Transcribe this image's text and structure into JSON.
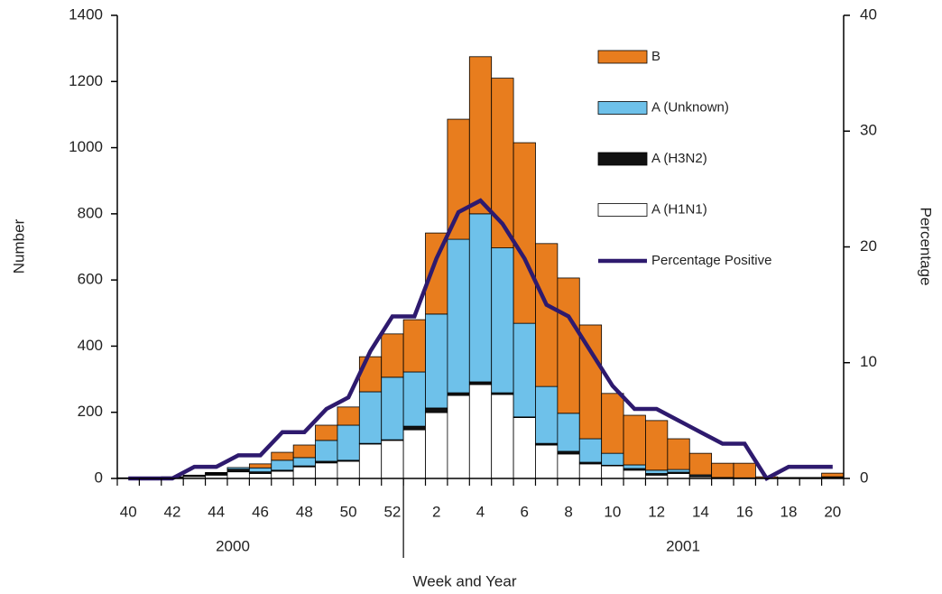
{
  "chart_data": {
    "type": "bar",
    "stacked": true,
    "x_label": "Week and Year",
    "y_label": "Number",
    "y2_label": "Percentage",
    "year_labels": [
      "2000",
      "2001"
    ],
    "categories": [
      "40",
      null,
      "42",
      null,
      "44",
      null,
      "46",
      null,
      "48",
      null,
      "50",
      null,
      "52",
      null,
      "2",
      null,
      "4",
      null,
      "6",
      null,
      "8",
      null,
      "10",
      null,
      "12",
      null,
      "14",
      null,
      "16",
      null,
      "18",
      null,
      "20"
    ],
    "ylim": [
      0,
      1400
    ],
    "yticks": [
      0,
      200,
      400,
      600,
      800,
      1000,
      1200,
      1400
    ],
    "y2lim": [
      0,
      40
    ],
    "y2ticks": [
      0,
      10,
      20,
      30,
      40
    ],
    "series": [
      {
        "name": "A (H1N1)",
        "color": "#ffffff",
        "type": "bar",
        "values": [
          1,
          1,
          3,
          6,
          10,
          20,
          15,
          22,
          35,
          47,
          52,
          104,
          115,
          147,
          199,
          251,
          284,
          254,
          184,
          101,
          74,
          44,
          38,
          25,
          10,
          15,
          5,
          2,
          1,
          1,
          1,
          1,
          3
        ]
      },
      {
        "name": "A (H3N2)",
        "color": "#111111",
        "type": "bar",
        "values": [
          0,
          0,
          1,
          2,
          4,
          8,
          5,
          3,
          3,
          5,
          3,
          2,
          2,
          11,
          14,
          8,
          8,
          5,
          2,
          5,
          8,
          5,
          2,
          5,
          5,
          4,
          3,
          0,
          0,
          0,
          0,
          0,
          0
        ]
      },
      {
        "name": "A (Unknown)",
        "color": "#6ec1ea",
        "type": "bar",
        "values": [
          0,
          0,
          1,
          1,
          2,
          5,
          12,
          30,
          25,
          63,
          106,
          156,
          189,
          164,
          284,
          464,
          508,
          438,
          283,
          172,
          115,
          71,
          36,
          11,
          10,
          8,
          3,
          1,
          1,
          0,
          0,
          0,
          2
        ]
      },
      {
        "name": "B",
        "color": "#e87d1e",
        "type": "bar",
        "values": [
          1,
          1,
          0,
          1,
          2,
          0,
          12,
          24,
          38,
          46,
          55,
          106,
          131,
          158,
          245,
          363,
          475,
          513,
          546,
          432,
          409,
          344,
          181,
          150,
          150,
          93,
          65,
          43,
          44,
          4,
          2,
          2,
          11
        ]
      },
      {
        "name": "Percentage Positive",
        "color": "#2e1a6e",
        "type": "line",
        "axis": "y2",
        "values": [
          0,
          0,
          0,
          1,
          1,
          2,
          2,
          4,
          4,
          6,
          7,
          11,
          14,
          14,
          19,
          23,
          24,
          22,
          19,
          15,
          14,
          11,
          8,
          6,
          6,
          5,
          4,
          3,
          3,
          0,
          1,
          1,
          1
        ]
      }
    ]
  }
}
